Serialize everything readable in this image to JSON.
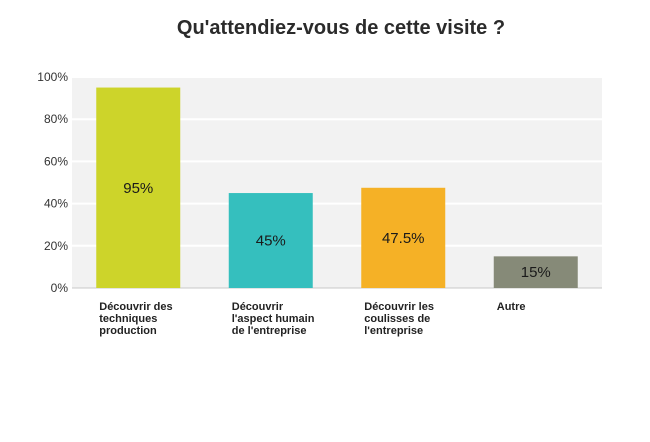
{
  "chart_data": {
    "type": "bar",
    "title": "Qu'attendiez-vous de cette visite ?",
    "xlabel": "",
    "ylabel": "",
    "ylim": [
      0,
      100
    ],
    "yticks": [
      "0%",
      "20%",
      "40%",
      "60%",
      "80%",
      "100%"
    ],
    "categories": [
      [
        "Découvrir des",
        "techniques",
        "production"
      ],
      [
        "Découvrir",
        "l'aspect humain",
        "de l'entreprise"
      ],
      [
        "Découvrir les",
        "coulisses de",
        "l'entreprise"
      ],
      [
        "Autre"
      ]
    ],
    "values": [
      95,
      45,
      47.5,
      15
    ],
    "data_labels": [
      "95%",
      "45%",
      "47.5%",
      "15%"
    ],
    "colors": [
      "#cdd42a",
      "#35bfbe",
      "#f5b126",
      "#868a78"
    ],
    "grid": true,
    "legend": "none"
  }
}
